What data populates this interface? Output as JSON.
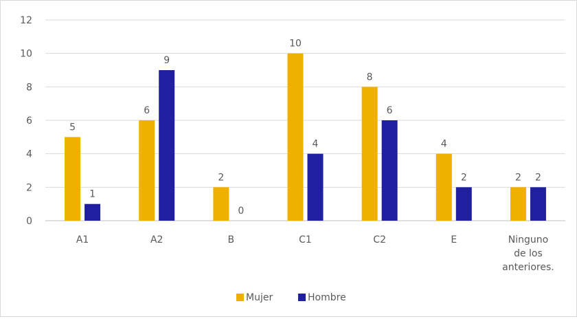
{
  "chart_data": {
    "type": "bar",
    "title": "",
    "xlabel": "",
    "ylabel": "",
    "categories": [
      [
        "A1"
      ],
      [
        "A2"
      ],
      [
        "B"
      ],
      [
        "C1"
      ],
      [
        "C2"
      ],
      [
        "E"
      ],
      [
        "Ninguno",
        "de los",
        "anteriores."
      ]
    ],
    "series": [
      {
        "name": "Mujer",
        "color": "#f0b000",
        "values": [
          5,
          6,
          2,
          10,
          8,
          4,
          2
        ]
      },
      {
        "name": "Hombre",
        "color": "#1f1fa0",
        "values": [
          1,
          9,
          0,
          4,
          6,
          2,
          2
        ]
      }
    ],
    "ylim": [
      0,
      12
    ],
    "yticks": [
      0,
      2,
      4,
      6,
      8,
      10,
      12
    ],
    "grid": true,
    "data_labels": true,
    "legend_position": "bottom"
  }
}
